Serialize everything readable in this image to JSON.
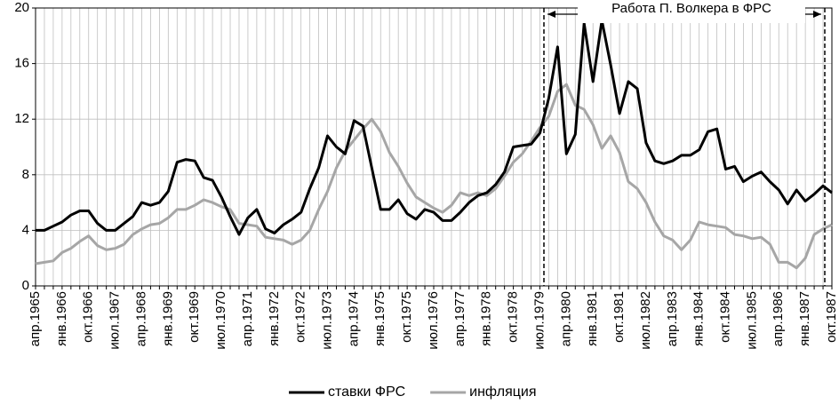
{
  "chart_data": {
    "type": "line",
    "annotation": "Работа П. Волкера в ФРС",
    "categories": [
      "апр.1965",
      null,
      null,
      "янв.1966",
      null,
      null,
      "окт.1966",
      null,
      null,
      "июл.1967",
      null,
      null,
      "апр.1968",
      null,
      null,
      "янв.1969",
      null,
      null,
      "окт.1969",
      null,
      null,
      "июл.1970",
      null,
      null,
      "апр.1971",
      null,
      null,
      "янв.1972",
      null,
      null,
      "окт.1972",
      null,
      null,
      "июл.1973",
      null,
      null,
      "апр.1974",
      null,
      null,
      "янв.1975",
      null,
      null,
      "окт.1975",
      null,
      null,
      "июл.1976",
      null,
      null,
      "апр.1977",
      null,
      null,
      "янв.1978",
      null,
      null,
      "окт.1978",
      null,
      null,
      "июл.1979",
      null,
      null,
      "апр.1980",
      null,
      null,
      "янв.1981",
      null,
      null,
      "окт.1981",
      null,
      null,
      "июл.1982",
      null,
      null,
      "апр.1983",
      null,
      null,
      "янв.1984",
      null,
      null,
      "окт.1984",
      null,
      null,
      "июл.1985",
      null,
      null,
      "апр.1986",
      null,
      null,
      "янв.1987",
      null,
      null,
      "окт.1987"
    ],
    "series": [
      {
        "name": "ставки ФРС",
        "color": "#000000",
        "values": [
          4.0,
          4.0,
          4.3,
          4.6,
          5.1,
          5.4,
          5.4,
          4.5,
          4.0,
          4.0,
          4.5,
          5.0,
          6.0,
          5.8,
          6.0,
          6.8,
          8.9,
          9.1,
          9.0,
          7.8,
          7.6,
          6.4,
          5.0,
          3.7,
          4.9,
          5.5,
          4.1,
          3.8,
          4.4,
          4.8,
          5.3,
          7.0,
          8.5,
          10.8,
          10.0,
          9.5,
          11.9,
          11.5,
          8.5,
          5.5,
          5.5,
          6.2,
          5.2,
          4.8,
          5.5,
          5.3,
          4.7,
          4.7,
          5.3,
          6.0,
          6.5,
          6.7,
          7.3,
          8.2,
          10.0,
          10.1,
          10.2,
          11.0,
          13.5,
          17.2,
          9.5,
          10.9,
          18.9,
          14.7,
          19.1,
          15.9,
          12.4,
          14.7,
          14.2,
          10.3,
          9.0,
          8.8,
          9.0,
          9.4,
          9.4,
          9.8,
          11.1,
          11.3,
          8.4,
          8.6,
          7.5,
          7.9,
          8.2,
          7.5,
          6.9,
          5.9,
          6.9,
          6.1,
          6.6,
          7.2,
          6.7
        ]
      },
      {
        "name": "инфляция",
        "color": "#a6a6a6",
        "values": [
          1.6,
          1.7,
          1.8,
          2.4,
          2.7,
          3.2,
          3.6,
          2.9,
          2.6,
          2.7,
          3.0,
          3.7,
          4.1,
          4.4,
          4.5,
          4.9,
          5.5,
          5.5,
          5.8,
          6.2,
          6.0,
          5.7,
          5.5,
          4.5,
          4.4,
          4.3,
          3.5,
          3.4,
          3.3,
          3.0,
          3.3,
          4.0,
          5.5,
          6.8,
          8.5,
          9.7,
          10.5,
          11.3,
          12.0,
          11.1,
          9.6,
          8.6,
          7.4,
          6.4,
          6.0,
          5.6,
          5.3,
          5.8,
          6.7,
          6.5,
          6.7,
          6.5,
          7.0,
          7.9,
          8.9,
          9.5,
          10.4,
          11.4,
          12.2,
          14.0,
          14.5,
          13.0,
          12.7,
          11.6,
          9.9,
          10.8,
          9.6,
          7.5,
          7.0,
          6.0,
          4.6,
          3.6,
          3.3,
          2.6,
          3.3,
          4.6,
          4.4,
          4.3,
          4.2,
          3.7,
          3.6,
          3.4,
          3.5,
          3.0,
          1.7,
          1.7,
          1.3,
          2.0,
          3.7,
          4.1,
          4.4
        ]
      }
    ],
    "ylim": [
      0,
      20
    ],
    "yticks": [
      0,
      4,
      8,
      12,
      16,
      20
    ],
    "grid": true,
    "legend": "bottom"
  }
}
